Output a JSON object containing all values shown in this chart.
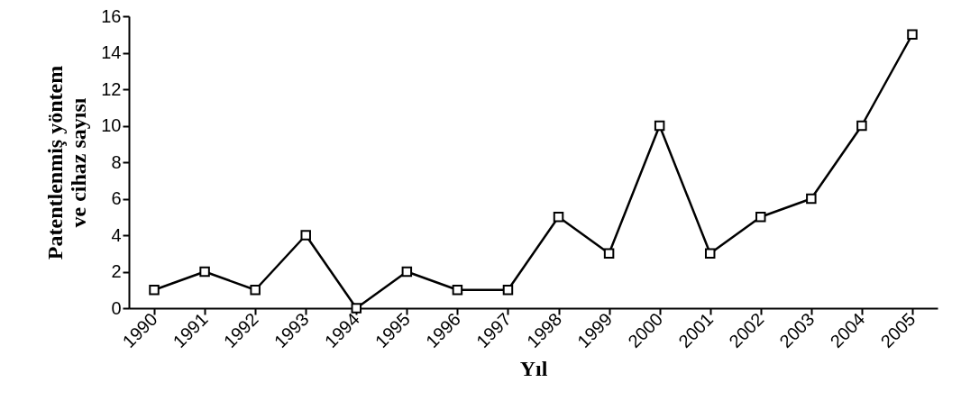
{
  "chart_data": {
    "type": "line",
    "xlabel": "Yıl",
    "ylabel": "Patentlenmiş yöntem ve cihaz sayısı",
    "categories": [
      "1990",
      "1991",
      "1992",
      "1993",
      "1994",
      "1995",
      "1996",
      "1997",
      "1998",
      "1999",
      "2000",
      "2001",
      "2002",
      "2003",
      "2004",
      "2005"
    ],
    "series": [
      {
        "color": "#000000",
        "values": [
          1,
          2,
          1,
          4,
          0,
          2,
          1,
          1,
          5,
          3,
          10,
          3,
          5,
          6,
          10,
          15
        ]
      }
    ],
    "ylim": [
      0,
      16
    ],
    "yticks": [
      0,
      2,
      4,
      6,
      8,
      10,
      12,
      14,
      16
    ],
    "grid": false,
    "marker": "square",
    "line_style": "solid"
  }
}
